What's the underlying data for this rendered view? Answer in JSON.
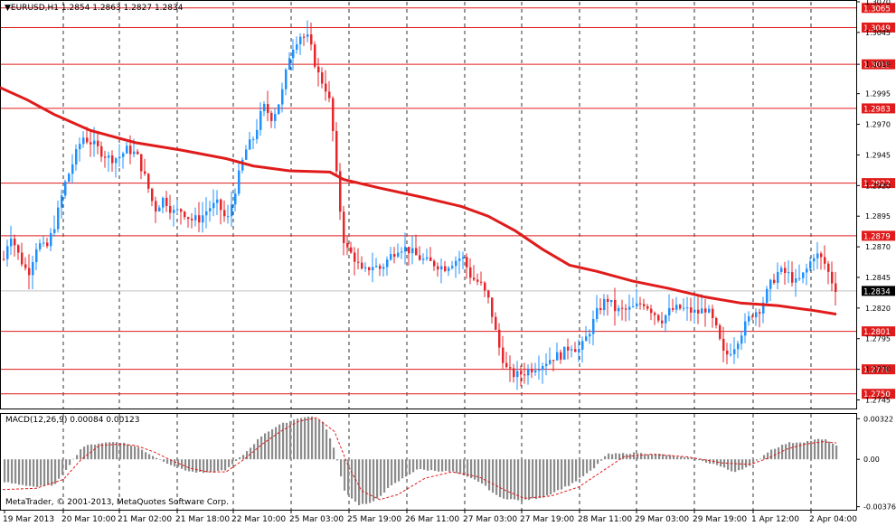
{
  "header": {
    "menu_glyph": "▼",
    "symbol_text": "EURUSD,H1  1.2854 1.2863 1.2827 1.2834"
  },
  "macd_label": "MACD(12,26,9) 0.00084 0.00123",
  "copyright": "MetaTrader, © 2001-2013, MetaQuotes Software Corp.",
  "colors": {
    "bull": "#1E90FF",
    "bear": "#E5262B",
    "ma": "#E01B1B",
    "level": "#E01B1B",
    "hist": "#8C8C8C",
    "signal": "#E01B1B",
    "current": "#000000"
  },
  "chart_data": [
    {
      "type": "candlestick",
      "symbol": "EURUSD",
      "timeframe": "H1",
      "ylim": [
        1.2738,
        1.307
      ],
      "price_ticks": [
        "1.3070",
        "1.3045",
        "1.3019",
        "1.2995",
        "1.2970",
        "1.2945",
        "1.2920",
        "1.2895",
        "1.2870",
        "1.2845",
        "1.2820",
        "1.2795",
        "1.2770",
        "1.2745"
      ],
      "x_labels": [
        "19 Mar 2013",
        "20 Mar 10:00",
        "21 Mar 02:00",
        "21 Mar 18:00",
        "22 Mar 10:00",
        "25 Mar 03:00",
        "25 Mar 19:00",
        "26 Mar 11:00",
        "27 Mar 03:00",
        "27 Mar 19:00",
        "28 Mar 11:00",
        "29 Mar 03:00",
        "29 Mar 19:00",
        "1 Apr 12:00",
        "2 Apr 04:00"
      ],
      "horizontal_levels": [
        "1.3065",
        "1.3049",
        "1.3019",
        "1.2983",
        "1.2922",
        "1.2879",
        "1.2801",
        "1.2770",
        "1.2750"
      ],
      "current_price": "1.2834",
      "ohlc_last": {
        "open": 1.2854,
        "high": 1.2863,
        "low": 1.2827,
        "close": 1.2834
      },
      "moving_average_path": [
        [
          0,
          1.3
        ],
        [
          30,
          1.299
        ],
        [
          60,
          1.2978
        ],
        [
          100,
          1.2965
        ],
        [
          150,
          1.2955
        ],
        [
          200,
          1.2949
        ],
        [
          250,
          1.2942
        ],
        [
          280,
          1.2936
        ],
        [
          320,
          1.2932
        ],
        [
          365,
          1.2931
        ],
        [
          380,
          1.2925
        ],
        [
          420,
          1.2918
        ],
        [
          470,
          1.291
        ],
        [
          510,
          1.2903
        ],
        [
          540,
          1.2895
        ],
        [
          570,
          1.2883
        ],
        [
          600,
          1.2868
        ],
        [
          630,
          1.2855
        ],
        [
          660,
          1.285
        ],
        [
          700,
          1.2842
        ],
        [
          740,
          1.2836
        ],
        [
          780,
          1.2829
        ],
        [
          820,
          1.2824
        ],
        [
          860,
          1.2822
        ],
        [
          900,
          1.2818
        ],
        [
          925,
          1.2815
        ]
      ],
      "price_path": [
        [
          3,
          1.286
        ],
        [
          10,
          1.2882
        ],
        [
          20,
          1.2862
        ],
        [
          30,
          1.2848
        ],
        [
          40,
          1.2873
        ],
        [
          50,
          1.2868
        ],
        [
          60,
          1.289
        ],
        [
          70,
          1.292
        ],
        [
          80,
          1.294
        ],
        [
          90,
          1.296
        ],
        [
          100,
          1.2955
        ],
        [
          110,
          1.2948
        ],
        [
          120,
          1.2942
        ],
        [
          130,
          1.2943
        ],
        [
          140,
          1.295
        ],
        [
          150,
          1.2945
        ],
        [
          160,
          1.2925
        ],
        [
          170,
          1.29
        ],
        [
          180,
          1.291
        ],
        [
          190,
          1.2898
        ],
        [
          200,
          1.29
        ],
        [
          210,
          1.2892
        ],
        [
          220,
          1.2893
        ],
        [
          230,
          1.2902
        ],
        [
          240,
          1.2905
        ],
        [
          250,
          1.289
        ],
        [
          260,
          1.292
        ],
        [
          270,
          1.2948
        ],
        [
          280,
          1.296
        ],
        [
          290,
          1.2985
        ],
        [
          300,
          1.2975
        ],
        [
          310,
          1.2993
        ],
        [
          320,
          1.303
        ],
        [
          330,
          1.3043
        ],
        [
          340,
          1.304
        ],
        [
          350,
          1.3012
        ],
        [
          360,
          1.2998
        ],
        [
          365,
          1.2983
        ],
        [
          370,
          1.2935
        ],
        [
          375,
          1.29
        ],
        [
          380,
          1.287
        ],
        [
          390,
          1.2862
        ],
        [
          400,
          1.2848
        ],
        [
          410,
          1.2855
        ],
        [
          420,
          1.2852
        ],
        [
          430,
          1.2862
        ],
        [
          440,
          1.287
        ],
        [
          450,
          1.2868
        ],
        [
          460,
          1.2862
        ],
        [
          470,
          1.2858
        ],
        [
          480,
          1.2856
        ],
        [
          490,
          1.2853
        ],
        [
          500,
          1.2858
        ],
        [
          510,
          1.2862
        ],
        [
          520,
          1.2845
        ],
        [
          530,
          1.284
        ],
        [
          540,
          1.2825
        ],
        [
          550,
          1.279
        ],
        [
          560,
          1.2768
        ],
        [
          570,
          1.2765
        ],
        [
          580,
          1.2768
        ],
        [
          590,
          1.2772
        ],
        [
          600,
          1.2775
        ],
        [
          610,
          1.278
        ],
        [
          620,
          1.2782
        ],
        [
          630,
          1.279
        ],
        [
          640,
          1.2785
        ],
        [
          650,
          1.28
        ],
        [
          660,
          1.2818
        ],
        [
          670,
          1.2828
        ],
        [
          680,
          1.2818
        ],
        [
          690,
          1.2818
        ],
        [
          700,
          1.282
        ],
        [
          710,
          1.2825
        ],
        [
          720,
          1.2818
        ],
        [
          730,
          1.281
        ],
        [
          740,
          1.2818
        ],
        [
          750,
          1.282
        ],
        [
          760,
          1.2818
        ],
        [
          770,
          1.2816
        ],
        [
          780,
          1.282
        ],
        [
          790,
          1.2805
        ],
        [
          800,
          1.278
        ],
        [
          810,
          1.2788
        ],
        [
          820,
          1.2802
        ],
        [
          830,
          1.2815
        ],
        [
          840,
          1.282
        ],
        [
          850,
          1.2838
        ],
        [
          860,
          1.285
        ],
        [
          870,
          1.2848
        ],
        [
          880,
          1.284
        ],
        [
          890,
          1.285
        ],
        [
          900,
          1.2865
        ],
        [
          910,
          1.2858
        ],
        [
          920,
          1.284
        ],
        [
          925,
          1.2834
        ]
      ]
    },
    {
      "type": "bar",
      "indicator": "MACD(12,26,9)",
      "macd_value": "0.00084",
      "signal_value": "0.00123",
      "y_ticks": [
        "0.00322",
        "0.00",
        "-0.00376"
      ],
      "ylim": [
        -0.004,
        0.0036
      ],
      "histogram_path": [
        [
          3,
          -0.0018
        ],
        [
          40,
          -0.0022
        ],
        [
          60,
          -0.002
        ],
        [
          75,
          -0.0005
        ],
        [
          90,
          0.001
        ],
        [
          110,
          0.0013
        ],
        [
          130,
          0.0014
        ],
        [
          150,
          0.001
        ],
        [
          170,
          0.0002
        ],
        [
          190,
          -0.0005
        ],
        [
          210,
          -0.001
        ],
        [
          230,
          -0.0011
        ],
        [
          250,
          -0.0008
        ],
        [
          270,
          0.0005
        ],
        [
          290,
          0.002
        ],
        [
          310,
          0.0028
        ],
        [
          330,
          0.0033
        ],
        [
          345,
          0.0034
        ],
        [
          358,
          0.0028
        ],
        [
          370,
          0.0005
        ],
        [
          380,
          -0.0025
        ],
        [
          395,
          -0.0036
        ],
        [
          410,
          -0.0035
        ],
        [
          430,
          -0.0022
        ],
        [
          460,
          -0.0008
        ],
        [
          500,
          -0.001
        ],
        [
          530,
          -0.0018
        ],
        [
          550,
          -0.003
        ],
        [
          575,
          -0.0033
        ],
        [
          600,
          -0.003
        ],
        [
          630,
          -0.002
        ],
        [
          655,
          -0.0008
        ],
        [
          670,
          0.0004
        ],
        [
          700,
          0.0005
        ],
        [
          730,
          0.0004
        ],
        [
          760,
          0.0001
        ],
        [
          790,
          -0.0004
        ],
        [
          810,
          -0.001
        ],
        [
          830,
          -0.0005
        ],
        [
          850,
          0.0007
        ],
        [
          870,
          0.0013
        ],
        [
          890,
          0.0014
        ],
        [
          905,
          0.0016
        ],
        [
          915,
          0.0015
        ],
        [
          925,
          0.001
        ]
      ],
      "signal_path": [
        [
          3,
          -0.0024
        ],
        [
          40,
          -0.0023
        ],
        [
          70,
          -0.0016
        ],
        [
          90,
          0.0
        ],
        [
          110,
          0.0011
        ],
        [
          130,
          0.0012
        ],
        [
          150,
          0.0011
        ],
        [
          170,
          0.0006
        ],
        [
          190,
          -0.0001
        ],
        [
          210,
          -0.0007
        ],
        [
          230,
          -0.001
        ],
        [
          250,
          -0.001
        ],
        [
          270,
          0.0
        ],
        [
          290,
          0.0012
        ],
        [
          310,
          0.0022
        ],
        [
          330,
          0.003
        ],
        [
          350,
          0.0033
        ],
        [
          370,
          0.0022
        ],
        [
          385,
          -0.0005
        ],
        [
          400,
          -0.0025
        ],
        [
          420,
          -0.0032
        ],
        [
          440,
          -0.0028
        ],
        [
          470,
          -0.0015
        ],
        [
          500,
          -0.001
        ],
        [
          530,
          -0.0014
        ],
        [
          560,
          -0.0025
        ],
        [
          580,
          -0.0031
        ],
        [
          610,
          -0.0029
        ],
        [
          640,
          -0.0022
        ],
        [
          665,
          -0.001
        ],
        [
          690,
          0.0002
        ],
        [
          720,
          0.0004
        ],
        [
          760,
          0.0002
        ],
        [
          800,
          -0.0003
        ],
        [
          830,
          -0.0004
        ],
        [
          850,
          0.0001
        ],
        [
          870,
          0.0008
        ],
        [
          890,
          0.0012
        ],
        [
          910,
          0.0014
        ],
        [
          925,
          0.0013
        ]
      ]
    }
  ]
}
